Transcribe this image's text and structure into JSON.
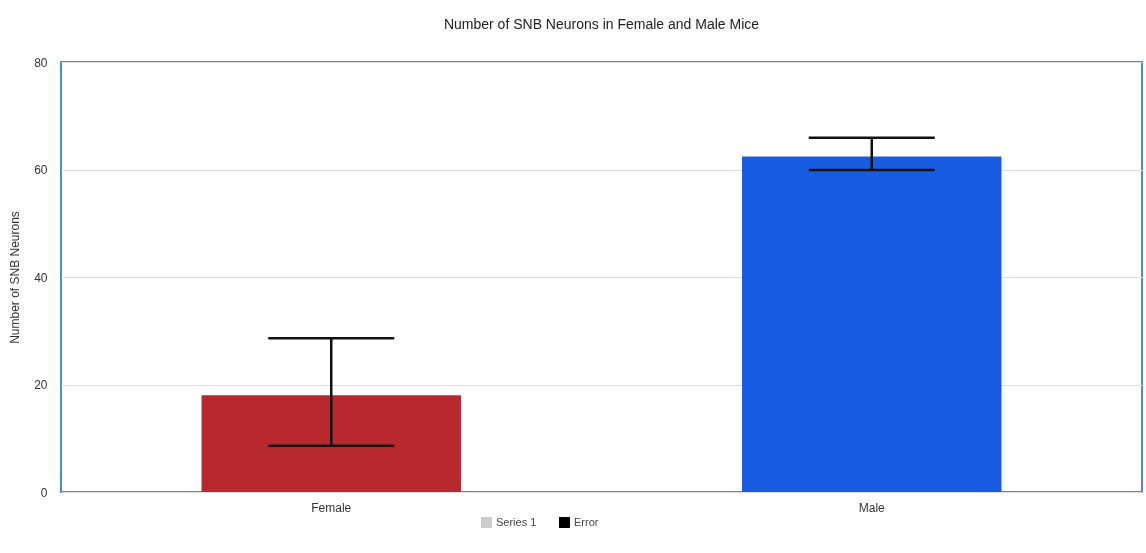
{
  "chart_data": {
    "type": "bar",
    "title": "Number of SNB Neurons in Female and Male Mice",
    "ylabel": "Number of SNB Neurons",
    "categories": [
      "Female",
      "Male"
    ],
    "series": [
      {
        "name": "Series 1",
        "color": "#cccccc",
        "colors": [
          "#b8282f",
          "#175ce0"
        ],
        "values": [
          18,
          62.4
        ],
        "errors": [
          [
            8.6,
            28.6
          ],
          [
            59.9,
            65.9
          ]
        ]
      },
      {
        "name": "Error",
        "color": "#000000",
        "values": [
          null,
          null
        ]
      }
    ],
    "ylim": [
      0,
      80
    ],
    "yticks": [
      0,
      20,
      40,
      60,
      80
    ],
    "grid": "y",
    "legend": "bottom"
  }
}
